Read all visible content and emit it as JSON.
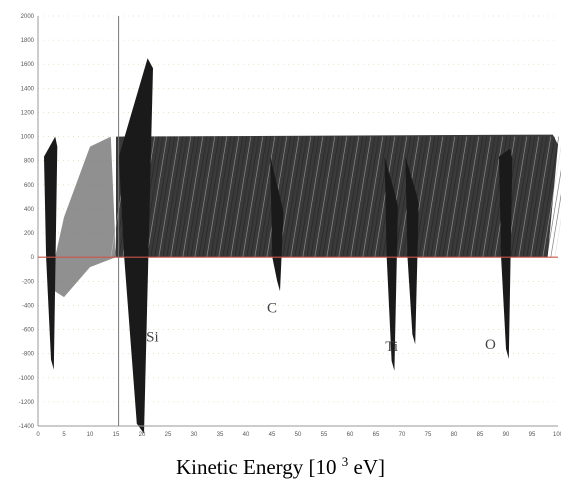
{
  "chart_data": {
    "type": "area",
    "title": "",
    "ylabel": "",
    "xlabel_parts": [
      "Kinetic Energy [10 ",
      "3",
      " eV]"
    ],
    "x_ticks": [
      "0",
      "5",
      "10",
      "15",
      "20",
      "25",
      "30",
      "35",
      "40",
      "45",
      "50",
      "55",
      "60",
      "65",
      "70",
      "75",
      "80",
      "85",
      "90",
      "95",
      "100"
    ],
    "y_ticks": [
      {
        "value": 2000,
        "label": "2000"
      },
      {
        "value": 1800,
        "label": "1800"
      },
      {
        "value": 1600,
        "label": "1600"
      },
      {
        "value": 1400,
        "label": "1400"
      },
      {
        "value": 1200,
        "label": "1200"
      },
      {
        "value": 1000,
        "label": "1000"
      },
      {
        "value": 800,
        "label": "800"
      },
      {
        "value": 600,
        "label": "600"
      },
      {
        "value": 400,
        "label": "400"
      },
      {
        "value": 200,
        "label": "200"
      },
      {
        "value": 0,
        "label": "0"
      },
      {
        "value": -200,
        "label": "-200"
      },
      {
        "value": -400,
        "label": "-400"
      },
      {
        "value": -600,
        "label": "-600"
      },
      {
        "value": -800,
        "label": "-800"
      },
      {
        "value": -1000,
        "label": "-1000"
      },
      {
        "value": -1200,
        "label": "-1200"
      },
      {
        "value": -1400,
        "label": "-1400"
      }
    ],
    "xlim": [
      0,
      100
    ],
    "ylim": [
      -1400,
      2000
    ],
    "marker_x": 15.5,
    "baseline": 0,
    "peak_labels": [
      {
        "label": "Si",
        "x": 22,
        "y": -700
      },
      {
        "label": "C",
        "x": 45,
        "y": -460
      },
      {
        "label": "Ti",
        "x": 68,
        "y": -780
      },
      {
        "label": "O",
        "x": 87,
        "y": -760
      }
    ],
    "surface": {
      "plateau": 1000,
      "peaks": [
        {
          "x": 2.5,
          "top": 1000,
          "bottom": -850
        },
        {
          "x": 19,
          "top": 1650,
          "bottom": -1380
        },
        {
          "x": 46,
          "top": 450,
          "bottom": -200
        },
        {
          "x": 68,
          "top": 500,
          "bottom": -860
        },
        {
          "x": 72,
          "top": 520,
          "bottom": -640
        },
        {
          "x": 90,
          "top": 900,
          "bottom": -760
        }
      ]
    },
    "colors": {
      "background": "#ffffff",
      "axis": "#999999",
      "baseline": "#c8564a",
      "grid_dots": "#d8d59a",
      "marker_line": "#777777",
      "surface": "#1a1a1a"
    }
  }
}
